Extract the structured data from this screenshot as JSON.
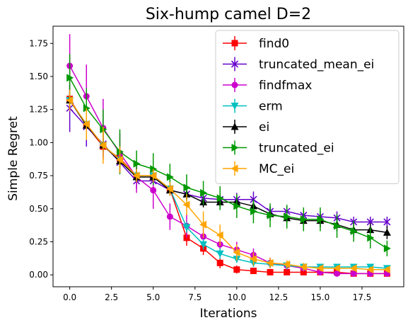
{
  "chart_data": {
    "type": "line",
    "title": "Six-hump camel D=2",
    "xlabel": "Iterations",
    "ylabel": "Simple Regret",
    "xlim": [
      -1,
      20
    ],
    "ylim": [
      -0.09,
      1.88
    ],
    "xticks": [
      "0.0",
      "2.5",
      "5.0",
      "7.5",
      "10.0",
      "12.5",
      "15.0",
      "17.5"
    ],
    "yticks": [
      "0.00",
      "0.25",
      "0.50",
      "0.75",
      "1.00",
      "1.25",
      "1.50",
      "1.75"
    ],
    "grid": false,
    "legend_position": "top-right",
    "x": [
      0,
      1,
      2,
      3,
      4,
      5,
      6,
      7,
      8,
      9,
      10,
      11,
      12,
      13,
      14,
      15,
      16,
      17,
      18,
      19
    ],
    "series": [
      {
        "name": "find0",
        "color": "#ff0000",
        "marker": "square",
        "values": [
          1.33,
          1.13,
          0.97,
          0.88,
          0.75,
          0.75,
          0.65,
          0.28,
          0.2,
          0.09,
          0.04,
          0.03,
          0.02,
          0.02,
          0.02,
          0.02,
          0.02,
          0.01,
          0.01,
          0.01
        ],
        "errors": [
          0.05,
          0.1,
          0.1,
          0.08,
          0.06,
          0.05,
          0.05,
          0.06,
          0.05,
          0.04,
          0.03,
          0.02,
          0.02,
          0.02,
          0.01,
          0.01,
          0.01,
          0.01,
          0.01,
          0.01
        ]
      },
      {
        "name": "truncated_mean_ei",
        "color": "#6600cc",
        "marker": "x",
        "values": [
          1.26,
          1.12,
          0.99,
          0.85,
          0.71,
          0.71,
          0.64,
          0.61,
          0.58,
          0.57,
          0.57,
          0.57,
          0.48,
          0.48,
          0.45,
          0.44,
          0.43,
          0.4,
          0.4,
          0.4
        ],
        "errors": [
          0.18,
          0.15,
          0.1,
          0.08,
          0.06,
          0.06,
          0.04,
          0.04,
          0.04,
          0.04,
          0.05,
          0.06,
          0.04,
          0.04,
          0.04,
          0.04,
          0.05,
          0.04,
          0.04,
          0.04
        ]
      },
      {
        "name": "findfmax",
        "color": "#cc00cc",
        "marker": "circle",
        "values": [
          1.58,
          1.35,
          1.11,
          0.92,
          0.74,
          0.64,
          0.44,
          0.37,
          0.29,
          0.23,
          0.19,
          0.15,
          0.09,
          0.07,
          0.05,
          0.02,
          0.01,
          0.01,
          0.01,
          0.01
        ],
        "errors": [
          0.24,
          0.24,
          0.22,
          0.15,
          0.12,
          0.14,
          0.1,
          0.09,
          0.08,
          0.06,
          0.06,
          0.05,
          0.04,
          0.03,
          0.02,
          0.02,
          0.01,
          0.01,
          0.01,
          0.01
        ]
      },
      {
        "name": "erm",
        "color": "#00c0c0",
        "marker": "triangle-down",
        "values": [
          1.32,
          1.14,
          0.98,
          0.87,
          0.75,
          0.75,
          0.65,
          0.36,
          0.23,
          0.16,
          0.12,
          0.09,
          0.08,
          0.07,
          0.06,
          0.06,
          0.06,
          0.06,
          0.06,
          0.05
        ],
        "errors": [
          0.06,
          0.06,
          0.05,
          0.05,
          0.05,
          0.04,
          0.04,
          0.04,
          0.04,
          0.04,
          0.03,
          0.03,
          0.03,
          0.02,
          0.02,
          0.02,
          0.02,
          0.02,
          0.02,
          0.02
        ]
      },
      {
        "name": "ei",
        "color": "#000000",
        "marker": "triangle-up",
        "values": [
          1.32,
          1.13,
          0.98,
          0.86,
          0.74,
          0.74,
          0.64,
          0.61,
          0.55,
          0.55,
          0.55,
          0.52,
          0.46,
          0.43,
          0.41,
          0.41,
          0.38,
          0.34,
          0.34,
          0.32
        ],
        "errors": [
          0.05,
          0.06,
          0.05,
          0.05,
          0.04,
          0.04,
          0.04,
          0.04,
          0.04,
          0.04,
          0.05,
          0.05,
          0.05,
          0.04,
          0.04,
          0.05,
          0.05,
          0.05,
          0.05,
          0.05
        ]
      },
      {
        "name": "truncated_ei",
        "color": "#009900",
        "marker": "triangle-right",
        "values": [
          1.49,
          1.26,
          1.1,
          0.93,
          0.84,
          0.8,
          0.74,
          0.66,
          0.62,
          0.58,
          0.52,
          0.48,
          0.45,
          0.44,
          0.42,
          0.42,
          0.37,
          0.33,
          0.28,
          0.2
        ],
        "errors": [
          0.18,
          0.15,
          0.15,
          0.17,
          0.1,
          0.12,
          0.1,
          0.1,
          0.09,
          0.09,
          0.09,
          0.09,
          0.09,
          0.09,
          0.09,
          0.09,
          0.09,
          0.08,
          0.08,
          0.06
        ]
      },
      {
        "name": "MC_ei",
        "color": "#ffa500",
        "marker": "triangle-left",
        "values": [
          1.32,
          1.14,
          0.98,
          0.87,
          0.75,
          0.75,
          0.65,
          0.53,
          0.38,
          0.3,
          0.17,
          0.12,
          0.09,
          0.08,
          0.06,
          0.05,
          0.05,
          0.05,
          0.04,
          0.04
        ],
        "errors": [
          0.08,
          0.12,
          0.14,
          0.1,
          0.05,
          0.05,
          0.05,
          0.08,
          0.1,
          0.08,
          0.06,
          0.05,
          0.04,
          0.03,
          0.03,
          0.02,
          0.02,
          0.02,
          0.02,
          0.02
        ]
      }
    ]
  }
}
